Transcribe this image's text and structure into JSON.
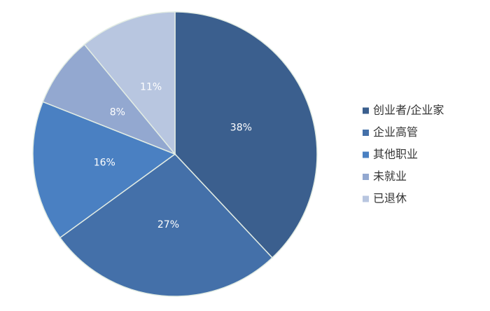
{
  "chart_data": {
    "type": "pie",
    "categories": [
      "创业者/企业家",
      "企业高管",
      "其他职业",
      "未就业",
      "已退休"
    ],
    "values": [
      38,
      27,
      16,
      8,
      11
    ],
    "value_labels": [
      "38%",
      "27%",
      "16%",
      "8%",
      "11%"
    ],
    "colors": [
      "#3b5f8e",
      "#4470a9",
      "#4a80c2",
      "#93a8d0",
      "#b8c6e0"
    ],
    "legend": "right"
  }
}
